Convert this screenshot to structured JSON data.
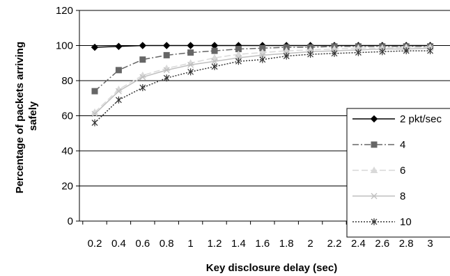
{
  "chart_data": {
    "type": "line",
    "title": "",
    "xlabel": "Key disclosure delay (sec)",
    "ylabel_lines": [
      "Percentage of packets arriving",
      "safely"
    ],
    "x": [
      0.2,
      0.4,
      0.6,
      0.8,
      1,
      1.2,
      1.4,
      1.6,
      1.8,
      2,
      2.2,
      2.4,
      2.6,
      2.8,
      3
    ],
    "x_tick_labels": [
      "0.2",
      "0.4",
      "0.6",
      "0.8",
      "1",
      "1.2",
      "1.4",
      "1.6",
      "1.8",
      "2",
      "2.2",
      "2.4",
      "2.6",
      "2.8",
      "3"
    ],
    "ylim": [
      0,
      120
    ],
    "y_ticks": [
      0,
      20,
      40,
      60,
      80,
      100,
      120
    ],
    "y_tick_labels": [
      "0",
      "20",
      "40",
      "60",
      "80",
      "100",
      "120"
    ],
    "grid": "horizontal",
    "legend_position": "right",
    "series": [
      {
        "name": "2 pkt/sec",
        "color": "#000000",
        "dash": "",
        "marker": "diamond",
        "values": [
          99,
          99.5,
          100,
          100,
          100,
          100,
          100,
          100,
          100,
          100,
          100,
          100,
          100,
          100,
          100
        ]
      },
      {
        "name": "4",
        "color": "#666666",
        "dash": "9,3,2,3",
        "marker": "square",
        "values": [
          74,
          86,
          92,
          94.5,
          96,
          97,
          98,
          98.5,
          99,
          99,
          99.5,
          99.5,
          99.5,
          99.5,
          99.5
        ]
      },
      {
        "name": "6",
        "color": "#d9d9d9",
        "dash": "9,4",
        "marker": "triangle",
        "values": [
          62,
          75,
          83,
          87,
          90,
          93,
          95,
          96,
          97,
          97.5,
          98,
          98.5,
          98.5,
          99,
          99
        ]
      },
      {
        "name": "8",
        "color": "#bfbfbf",
        "dash": "",
        "marker": "x",
        "values": [
          61,
          74,
          82,
          86,
          89,
          91,
          93,
          94.5,
          95.5,
          96.5,
          97,
          97.5,
          98,
          98,
          98.5
        ]
      },
      {
        "name": "10",
        "color": "#333333",
        "dash": "2,2",
        "marker": "asterisk",
        "values": [
          56,
          69,
          76,
          81.5,
          85,
          88,
          91,
          92,
          94,
          95,
          95.5,
          96,
          96.5,
          97,
          97
        ]
      }
    ]
  }
}
